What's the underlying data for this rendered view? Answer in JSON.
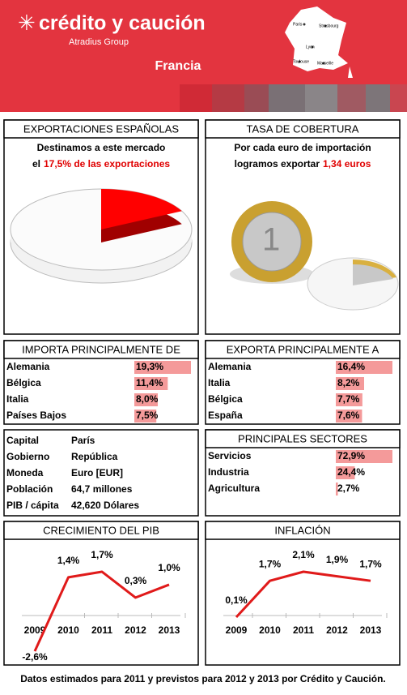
{
  "header": {
    "brand": "crédito y caución",
    "group": "Atradius Group",
    "country": "Francia",
    "cities": [
      "Paris",
      "Strasbourg",
      "Lyon",
      "Toulouse",
      "Marseille"
    ]
  },
  "cobertura": {
    "title": "TASA DE COBERTURA",
    "line1": "Por cada euro de importación",
    "line2": "logramos exportar",
    "highlight": "1,34 euros"
  },
  "info": {
    "rows": [
      [
        "Capital",
        "París"
      ],
      [
        "Gobierno",
        "República"
      ],
      [
        "Moneda",
        "Euro [EUR]"
      ],
      [
        "Población",
        "64,7 millones"
      ],
      [
        "PIB / cápita",
        "42,620 Dólares"
      ]
    ]
  },
  "footer": "Datos estimados para 2011 y previstos para 2012  y 2013 por Crédito y Caución.",
  "chart_data": [
    {
      "type": "pie",
      "title": "EXPORTACIONES ESPAÑOLAS",
      "subtitle": "Destinamos a este mercado",
      "lead": "el",
      "highlight": "17,5% de las exportaciones",
      "values": [
        17.5
      ],
      "color": "#ff0000"
    },
    {
      "type": "hbar",
      "title": "IMPORTA PRINCIPALMENTE DE",
      "categories": [
        "Alemania",
        "Bélgica",
        "Italia",
        "Países Bajos"
      ],
      "values": [
        19.3,
        11.4,
        8.0,
        7.5
      ],
      "value_labels": [
        "19,3%",
        "11,4%",
        "8,0%",
        "7,5%"
      ],
      "color": "#f07878"
    },
    {
      "type": "hbar",
      "title": "EXPORTA PRINCIPALMENTE A",
      "categories": [
        "Alemania",
        "Italia",
        "Bélgica",
        "España"
      ],
      "values": [
        16.4,
        8.2,
        7.7,
        7.6
      ],
      "value_labels": [
        "16,4%",
        "8,2%",
        "7,7%",
        "7,6%"
      ],
      "color": "#f07878"
    },
    {
      "type": "hbar",
      "title": "PRINCIPALES SECTORES",
      "categories": [
        "Servicios",
        "Industria",
        "Agricultura"
      ],
      "values": [
        72.9,
        24.4,
        2.7
      ],
      "value_labels": [
        "72,9%",
        "24,4%",
        "2,7%"
      ],
      "color": "#f07878"
    },
    {
      "type": "line",
      "title": "CRECIMIENTO DEL PIB",
      "categories": [
        "2009",
        "2010",
        "2011",
        "2012",
        "2013"
      ],
      "values": [
        -2.6,
        1.4,
        1.7,
        0.3,
        1.0
      ],
      "value_labels": [
        "-2,6%",
        "1,4%",
        "1,7%",
        "0,3%",
        "1,0%"
      ],
      "color": "#e01a1a"
    },
    {
      "type": "line",
      "title": "INFLACIÓN",
      "categories": [
        "2009",
        "2010",
        "2011",
        "2012",
        "2013"
      ],
      "values": [
        0.1,
        1.7,
        2.1,
        1.9,
        1.7
      ],
      "value_labels": [
        "0,1%",
        "1,7%",
        "2,1%",
        "1,9%",
        "1,7%"
      ],
      "color": "#e01a1a"
    }
  ]
}
